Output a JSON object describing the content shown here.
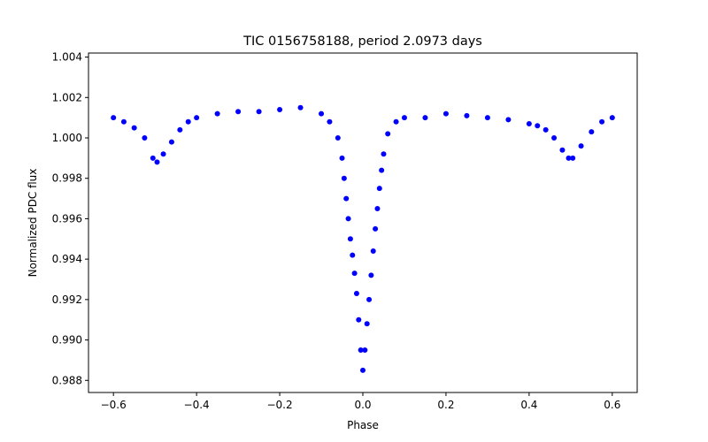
{
  "chart_data": {
    "type": "scatter",
    "title": "TIC 0156758188, period 2.0973 days",
    "xlabel": "Phase",
    "ylabel": "Normalized PDC flux",
    "xlim": [
      -0.66,
      0.66
    ],
    "ylim": [
      0.9874,
      1.0042
    ],
    "grid": false,
    "marker_color": "#0000ff",
    "x_ticks": [
      {
        "value": -0.6,
        "label": "−0.6"
      },
      {
        "value": -0.4,
        "label": "−0.4"
      },
      {
        "value": -0.2,
        "label": "−0.2"
      },
      {
        "value": 0.0,
        "label": "0.0"
      },
      {
        "value": 0.2,
        "label": "0.2"
      },
      {
        "value": 0.4,
        "label": "0.4"
      },
      {
        "value": 0.6,
        "label": "0.6"
      }
    ],
    "y_ticks": [
      {
        "value": 0.988,
        "label": "0.988"
      },
      {
        "value": 0.99,
        "label": "0.990"
      },
      {
        "value": 0.992,
        "label": "0.992"
      },
      {
        "value": 0.994,
        "label": "0.994"
      },
      {
        "value": 0.996,
        "label": "0.996"
      },
      {
        "value": 0.998,
        "label": "0.998"
      },
      {
        "value": 1.0,
        "label": "1.000"
      },
      {
        "value": 1.002,
        "label": "1.002"
      },
      {
        "value": 1.004,
        "label": "1.004"
      }
    ],
    "series": [
      {
        "x": [
          -0.6,
          -0.575,
          -0.55,
          -0.525,
          -0.505,
          -0.495,
          -0.48,
          -0.46,
          -0.44,
          -0.42,
          -0.4,
          -0.35,
          -0.3,
          -0.25,
          -0.2,
          -0.15,
          -0.1,
          -0.08,
          -0.06,
          -0.05,
          -0.045,
          -0.04,
          -0.035,
          -0.03,
          -0.025,
          -0.02,
          -0.015,
          -0.01,
          -0.005,
          0.0,
          0.005,
          0.01,
          0.015,
          0.02,
          0.025,
          0.03,
          0.035,
          0.04,
          0.045,
          0.05,
          0.06,
          0.08,
          0.1,
          0.15,
          0.2,
          0.25,
          0.3,
          0.35,
          0.4,
          0.42,
          0.44,
          0.46,
          0.48,
          0.495,
          0.505,
          0.525,
          0.55,
          0.575,
          0.6
        ],
        "y": [
          1.001,
          1.0008,
          1.0005,
          1.0,
          0.999,
          0.9988,
          0.9992,
          0.9998,
          1.0004,
          1.0008,
          1.001,
          1.0012,
          1.0013,
          1.0013,
          1.0014,
          1.0015,
          1.0012,
          1.0008,
          1.0,
          0.999,
          0.998,
          0.997,
          0.996,
          0.995,
          0.9942,
          0.9933,
          0.9923,
          0.991,
          0.9895,
          0.9885,
          0.9895,
          0.9908,
          0.992,
          0.9932,
          0.9944,
          0.9955,
          0.9965,
          0.9975,
          0.9984,
          0.9992,
          1.0002,
          1.0008,
          1.001,
          1.001,
          1.0012,
          1.0011,
          1.001,
          1.0009,
          1.0007,
          1.0006,
          1.0004,
          1.0,
          0.9994,
          0.999,
          0.999,
          0.9996,
          1.0003,
          1.0008,
          1.001
        ]
      }
    ]
  }
}
